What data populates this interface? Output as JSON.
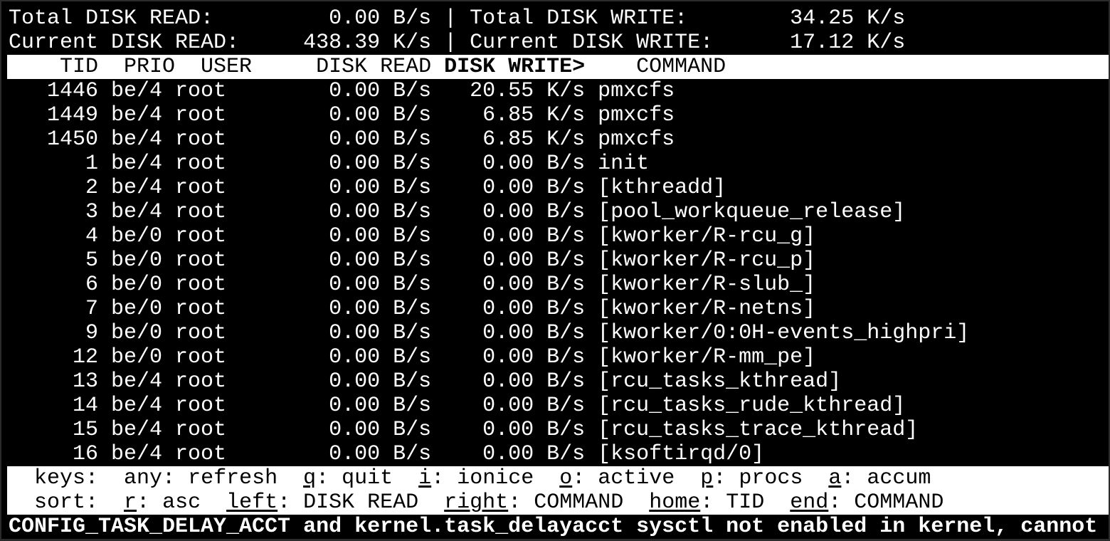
{
  "summary": {
    "total_read_label": "Total DISK READ:",
    "total_read": "0.00 B/s",
    "total_write_label": "Total DISK WRITE:",
    "total_write": "34.25 K/s",
    "current_read_label": "Current DISK READ:",
    "current_read": "438.39 K/s",
    "current_write_label": "Current DISK WRITE:",
    "current_write": "17.12 K/s"
  },
  "header": {
    "left": "    TID  PRIO  USER     DISK READ ",
    "sorted": "DISK WRITE>",
    "right": "    COMMAND"
  },
  "rows": [
    {
      "tid": "1446",
      "prio": "be/4",
      "user": "root",
      "read": "0.00 B/s",
      "write": "20.55 K/s",
      "command": "pmxcfs"
    },
    {
      "tid": "1449",
      "prio": "be/4",
      "user": "root",
      "read": "0.00 B/s",
      "write": "6.85 K/s",
      "command": "pmxcfs"
    },
    {
      "tid": "1450",
      "prio": "be/4",
      "user": "root",
      "read": "0.00 B/s",
      "write": "6.85 K/s",
      "command": "pmxcfs"
    },
    {
      "tid": "1",
      "prio": "be/4",
      "user": "root",
      "read": "0.00 B/s",
      "write": "0.00 B/s",
      "command": "init"
    },
    {
      "tid": "2",
      "prio": "be/4",
      "user": "root",
      "read": "0.00 B/s",
      "write": "0.00 B/s",
      "command": "[kthreadd]"
    },
    {
      "tid": "3",
      "prio": "be/4",
      "user": "root",
      "read": "0.00 B/s",
      "write": "0.00 B/s",
      "command": "[pool_workqueue_release]"
    },
    {
      "tid": "4",
      "prio": "be/0",
      "user": "root",
      "read": "0.00 B/s",
      "write": "0.00 B/s",
      "command": "[kworker/R-rcu_g]"
    },
    {
      "tid": "5",
      "prio": "be/0",
      "user": "root",
      "read": "0.00 B/s",
      "write": "0.00 B/s",
      "command": "[kworker/R-rcu_p]"
    },
    {
      "tid": "6",
      "prio": "be/0",
      "user": "root",
      "read": "0.00 B/s",
      "write": "0.00 B/s",
      "command": "[kworker/R-slub_]"
    },
    {
      "tid": "7",
      "prio": "be/0",
      "user": "root",
      "read": "0.00 B/s",
      "write": "0.00 B/s",
      "command": "[kworker/R-netns]"
    },
    {
      "tid": "9",
      "prio": "be/0",
      "user": "root",
      "read": "0.00 B/s",
      "write": "0.00 B/s",
      "command": "[kworker/0:0H-events_highpri]"
    },
    {
      "tid": "12",
      "prio": "be/0",
      "user": "root",
      "read": "0.00 B/s",
      "write": "0.00 B/s",
      "command": "[kworker/R-mm_pe]"
    },
    {
      "tid": "13",
      "prio": "be/4",
      "user": "root",
      "read": "0.00 B/s",
      "write": "0.00 B/s",
      "command": "[rcu_tasks_kthread]"
    },
    {
      "tid": "14",
      "prio": "be/4",
      "user": "root",
      "read": "0.00 B/s",
      "write": "0.00 B/s",
      "command": "[rcu_tasks_rude_kthread]"
    },
    {
      "tid": "15",
      "prio": "be/4",
      "user": "root",
      "read": "0.00 B/s",
      "write": "0.00 B/s",
      "command": "[rcu_tasks_trace_kthread]"
    },
    {
      "tid": "16",
      "prio": "be/4",
      "user": "root",
      "read": "0.00 B/s",
      "write": "0.00 B/s",
      "command": "[ksoftirqd/0]"
    }
  ],
  "keys": {
    "label": "keys:",
    "items": [
      {
        "key": "any",
        "desc": "refresh",
        "underline": false
      },
      {
        "key": "q",
        "desc": "quit",
        "underline": true
      },
      {
        "key": "i",
        "desc": "ionice",
        "underline": true
      },
      {
        "key": "o",
        "desc": "active",
        "underline": true
      },
      {
        "key": "p",
        "desc": "procs",
        "underline": true
      },
      {
        "key": "a",
        "desc": "accum",
        "underline": true
      }
    ]
  },
  "sort": {
    "label": "sort:",
    "items": [
      {
        "key": "r",
        "desc": "asc",
        "underline": true
      },
      {
        "key": "left",
        "desc": "DISK READ",
        "underline": true
      },
      {
        "key": "right",
        "desc": "COMMAND",
        "underline": true
      },
      {
        "key": "home",
        "desc": "TID",
        "underline": true
      },
      {
        "key": "end",
        "desc": "COMMAND",
        "underline": true
      }
    ]
  },
  "warning": "CONFIG_TASK_DELAY_ACCT and kernel.task_delayacct sysctl not enabled in kernel, cannot"
}
